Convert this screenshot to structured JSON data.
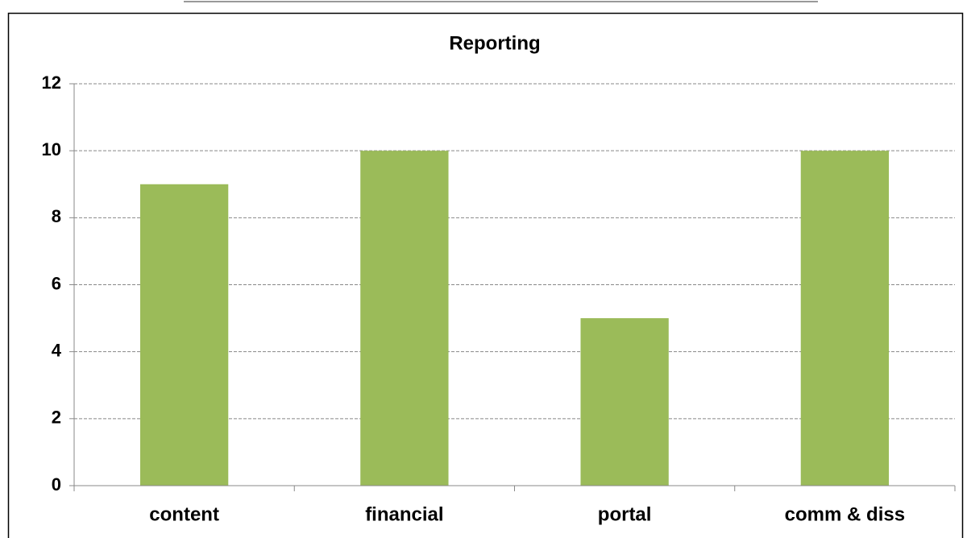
{
  "chart_data": {
    "type": "bar",
    "title": "Reporting",
    "categories": [
      "content",
      "financial",
      "portal",
      "comm & diss"
    ],
    "values": [
      9,
      10,
      5,
      10
    ],
    "color": "#9bbb59",
    "ylim": [
      0,
      12
    ],
    "yticks": [
      0,
      2,
      4,
      6,
      8,
      10,
      12
    ],
    "grid": true
  }
}
